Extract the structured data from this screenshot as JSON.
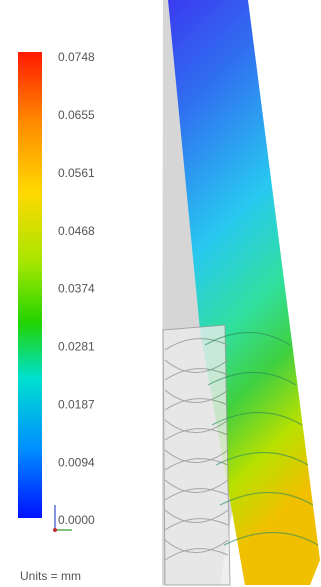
{
  "legend": {
    "ticks": [
      "0.0748",
      "0.0655",
      "0.0561",
      "0.0468",
      "0.0374",
      "0.0281",
      "0.0187",
      "0.0094",
      "0.0000"
    ],
    "units": "Units = mm"
  }
}
